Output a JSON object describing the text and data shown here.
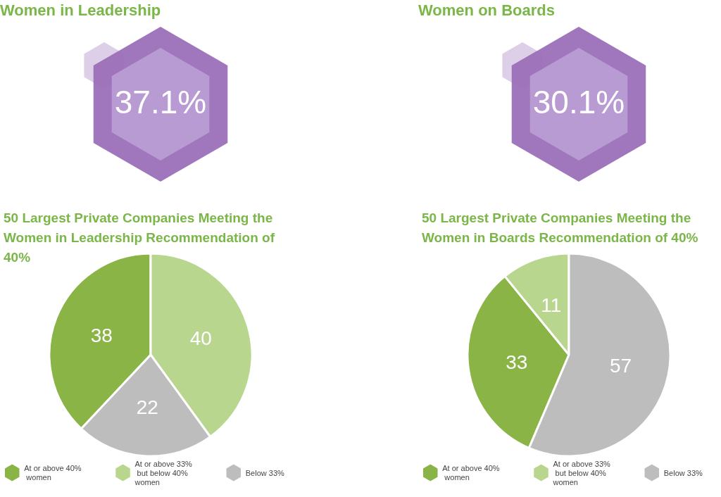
{
  "chart_data": [
    {
      "type": "other",
      "title": "Women in Leadership",
      "annotations": [
        "37.1%"
      ]
    },
    {
      "type": "other",
      "title": "Women on Boards",
      "annotations": [
        "30.1%"
      ]
    },
    {
      "type": "pie",
      "title": "50 Largest Private Companies Meeting the Women in Leadership Recommendation of 40%",
      "categories": [
        "At or above 40% women",
        "At or above 33% but below 40% women",
        "Below 33%"
      ],
      "values": [
        38,
        40,
        22
      ],
      "colors": [
        "#8ab446",
        "#b9d68f",
        "#bdbdbd"
      ],
      "data_labels": true,
      "legend": "bottom"
    },
    {
      "type": "pie",
      "title": "50 Largest Private Companies Meeting the Women in Boards Recommendation of 40%",
      "categories": [
        "At or above 40% women",
        "At or above 33% but below 40% women",
        "Below 33%"
      ],
      "values": [
        33,
        11,
        57
      ],
      "colors": [
        "#8ab446",
        "#b9d68f",
        "#bdbdbd"
      ],
      "data_labels": true,
      "legend": "bottom"
    }
  ]
}
